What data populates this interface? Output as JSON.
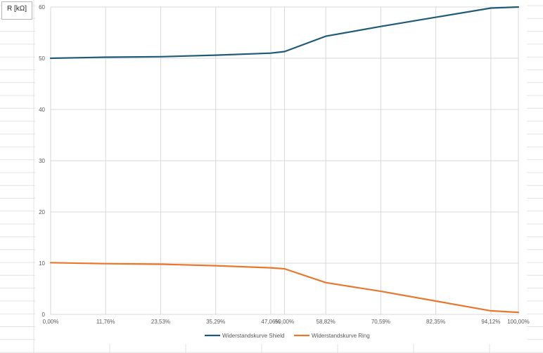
{
  "sheet": {
    "unit_label": "R [kΩ]"
  },
  "colors": {
    "shield": "#1f5a7a",
    "ring": "#e8772e",
    "gridline": "#d9d9d9",
    "sheet_grid": "#e3e3e3"
  },
  "chart_data": {
    "type": "line",
    "title": "",
    "xlabel": "",
    "ylabel": "",
    "categories": [
      "0,00%",
      "11,76%",
      "23,53%",
      "35,29%",
      "47,06%",
      "50,00%",
      "58,82%",
      "70,59%",
      "82,35%",
      "94,12%",
      "100,00%"
    ],
    "x": [
      0.0,
      11.76,
      23.53,
      35.29,
      47.06,
      50.0,
      58.82,
      70.59,
      82.35,
      94.12,
      100.0
    ],
    "y_ticks": [
      "0",
      "10",
      "20",
      "30",
      "40",
      "50",
      "60"
    ],
    "ylim": [
      0,
      60
    ],
    "grid": true,
    "legend_position": "bottom",
    "series": [
      {
        "name": "Widerstandskurve Shield",
        "color": "#1f5a7a",
        "values": [
          50.0,
          50.2,
          50.3,
          50.6,
          51.0,
          51.3,
          54.3,
          56.2,
          58.0,
          59.8,
          60.0
        ]
      },
      {
        "name": "Widerstandskurve Ring",
        "color": "#e8772e",
        "values": [
          10.1,
          9.9,
          9.8,
          9.5,
          9.1,
          8.9,
          6.2,
          4.5,
          2.6,
          0.7,
          0.4
        ]
      }
    ]
  }
}
